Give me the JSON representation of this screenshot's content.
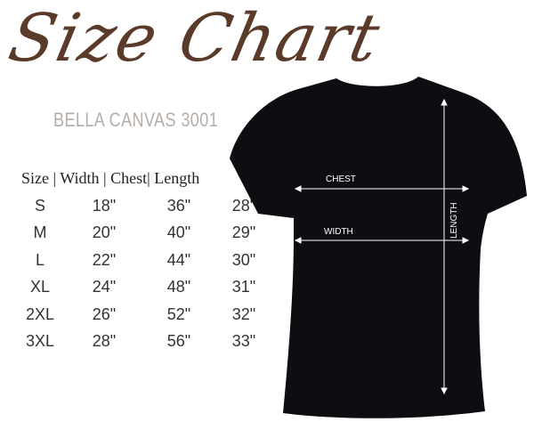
{
  "title": "Size Chart",
  "subtitle": "BELLA CANVAS 3001",
  "table": {
    "header": "Size | Width | Chest| Length",
    "rows": [
      [
        "S",
        "18\"",
        "36\"",
        "28\""
      ],
      [
        "M",
        "20\"",
        "40\"",
        "29\""
      ],
      [
        "L",
        "22\"",
        "44\"",
        "30\""
      ],
      [
        "XL",
        "24\"",
        "48\"",
        "31\""
      ],
      [
        "2XL",
        "26\"",
        "52\"",
        "32\""
      ],
      [
        "3XL",
        "28\"",
        "56\"",
        "33\""
      ]
    ]
  },
  "diagram": {
    "chest": "CHEST",
    "width": "WIDTH",
    "length": "LENGTH"
  },
  "colors": {
    "title": "#5a3a28",
    "subtitle": "#b5aea8",
    "shirt": "#0e0e12"
  }
}
